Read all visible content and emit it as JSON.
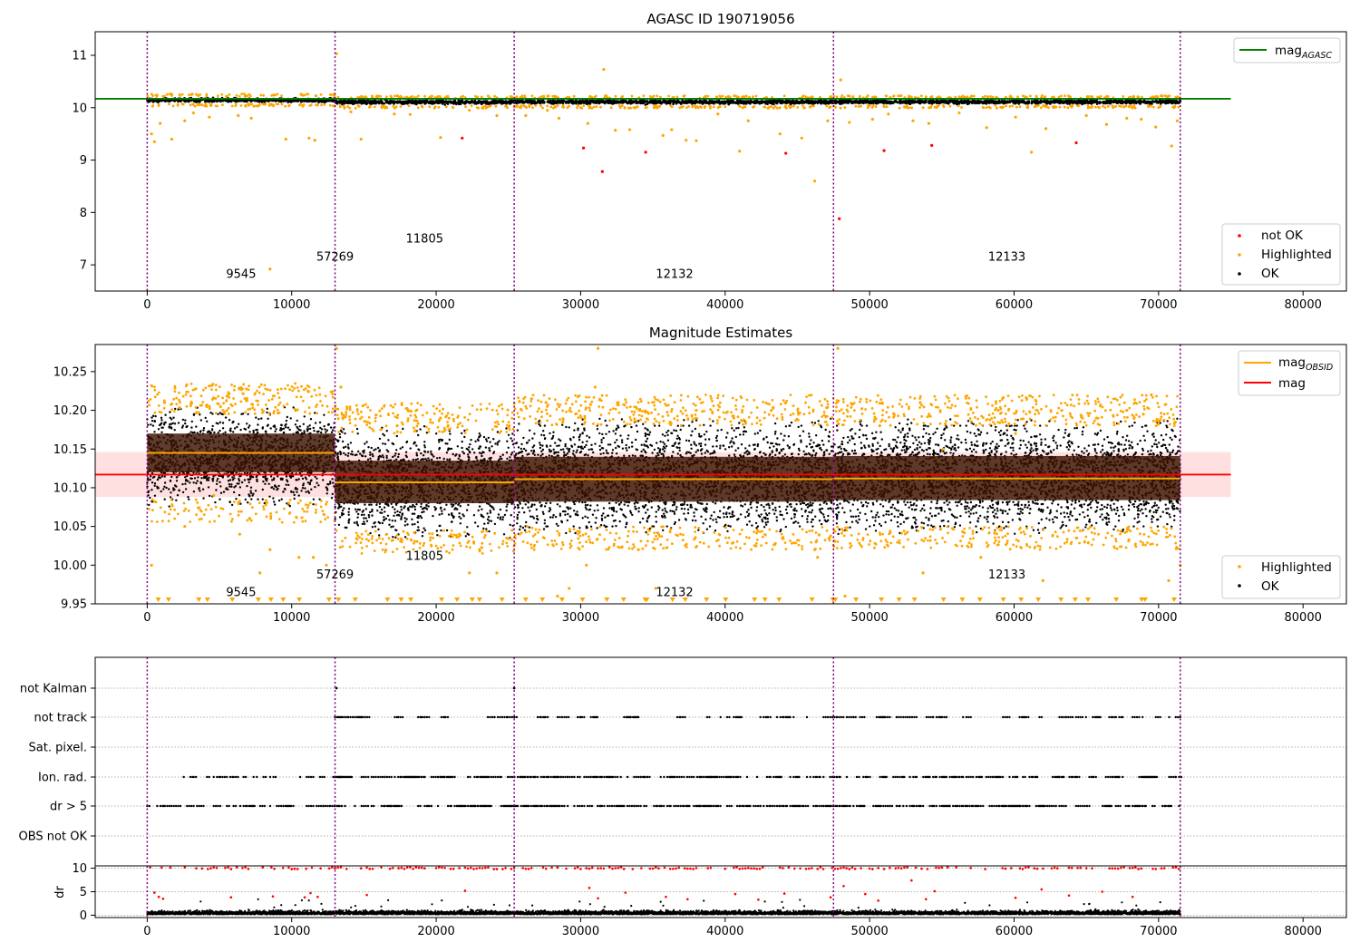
{
  "chart_data": [
    {
      "type": "scatter",
      "panel": "top",
      "title": "AGASC ID 190719056",
      "xlim": [
        -3600,
        83000
      ],
      "ylim": [
        6.5,
        11.45
      ],
      "xticks": [
        0,
        10000,
        20000,
        30000,
        40000,
        50000,
        60000,
        70000,
        80000
      ],
      "yticks": [
        7,
        8,
        9,
        10,
        11
      ],
      "vlines": [
        0,
        13000,
        25400,
        47500,
        71500
      ],
      "hline": {
        "name": "mag",
        "sub": "AGASC",
        "y": 10.17,
        "x": [
          -3600,
          75000
        ],
        "color": "#008000"
      },
      "obsid_labels": [
        {
          "text": "9545",
          "x": 6500,
          "y": 6.75
        },
        {
          "text": "57269",
          "x": 13000,
          "y": 7.08
        },
        {
          "text": "11805",
          "x": 19200,
          "y": 7.43
        },
        {
          "text": "12132",
          "x": 36500,
          "y": 6.75
        },
        {
          "text": "12133",
          "x": 59500,
          "y": 7.08
        }
      ],
      "segments": [
        {
          "x0": 0,
          "x1": 13000,
          "y": 10.145,
          "spread": 0.028
        },
        {
          "x0": 13000,
          "x1": 25400,
          "y": 10.108,
          "spread": 0.028
        },
        {
          "x0": 25400,
          "x1": 47500,
          "y": 10.11,
          "spread": 0.028
        },
        {
          "x0": 47500,
          "x1": 71500,
          "y": 10.112,
          "spread": 0.028
        }
      ],
      "series": [
        {
          "name": "not OK",
          "color": "#ff0000",
          "points": [
            [
              21800,
              9.42
            ],
            [
              30200,
              9.23
            ],
            [
              31500,
              8.78
            ],
            [
              34500,
              9.15
            ],
            [
              44200,
              9.13
            ],
            [
              47900,
              7.88
            ],
            [
              51000,
              9.18
            ],
            [
              54300,
              9.28
            ],
            [
              64300,
              9.33
            ]
          ]
        },
        {
          "name": "Highlighted",
          "color": "#ffa500",
          "points": [
            [
              300,
              9.5
            ],
            [
              500,
              9.35
            ],
            [
              900,
              9.7
            ],
            [
              1700,
              9.4
            ],
            [
              2600,
              9.75
            ],
            [
              3200,
              9.9
            ],
            [
              4300,
              9.82
            ],
            [
              6300,
              9.85
            ],
            [
              7200,
              9.8
            ],
            [
              8500,
              6.92
            ],
            [
              9600,
              9.4
            ],
            [
              11200,
              9.42
            ],
            [
              11600,
              9.38
            ],
            [
              13100,
              11.03
            ],
            [
              14100,
              9.92
            ],
            [
              14800,
              9.4
            ],
            [
              17100,
              9.88
            ],
            [
              18200,
              9.87
            ],
            [
              20300,
              9.43
            ],
            [
              22300,
              9.95
            ],
            [
              24200,
              9.85
            ],
            [
              26200,
              9.85
            ],
            [
              27700,
              9.95
            ],
            [
              28500,
              9.8
            ],
            [
              30500,
              9.7
            ],
            [
              31600,
              10.73
            ],
            [
              32400,
              9.57
            ],
            [
              33400,
              9.58
            ],
            [
              35700,
              9.47
            ],
            [
              36300,
              9.58
            ],
            [
              37300,
              9.38
            ],
            [
              38000,
              9.37
            ],
            [
              39500,
              9.88
            ],
            [
              41000,
              9.17
            ],
            [
              41600,
              9.75
            ],
            [
              43800,
              9.5
            ],
            [
              45300,
              9.42
            ],
            [
              46200,
              8.6
            ],
            [
              47100,
              9.75
            ],
            [
              48000,
              10.53
            ],
            [
              48600,
              9.72
            ],
            [
              50200,
              9.78
            ],
            [
              51300,
              9.88
            ],
            [
              53000,
              9.75
            ],
            [
              54100,
              9.7
            ],
            [
              56200,
              9.9
            ],
            [
              58100,
              9.62
            ],
            [
              60100,
              9.82
            ],
            [
              61200,
              9.15
            ],
            [
              62200,
              9.6
            ],
            [
              65000,
              9.85
            ],
            [
              66400,
              9.68
            ],
            [
              67800,
              9.8
            ],
            [
              68800,
              9.78
            ],
            [
              69800,
              9.63
            ],
            [
              70900,
              9.27
            ],
            [
              71300,
              9.75
            ]
          ]
        }
      ],
      "ok_band": {
        "name": "OK",
        "color": "#000000"
      },
      "legend_lines": [
        {
          "name": "mag",
          "sub": "AGASC",
          "color": "#008000"
        }
      ],
      "legend_points": [
        "not OK",
        "Highlighted",
        "OK"
      ]
    },
    {
      "type": "scatter",
      "panel": "middle",
      "title": "Magnitude Estimates",
      "xlim": [
        -3600,
        83000
      ],
      "ylim": [
        9.95,
        10.285
      ],
      "xticks": [
        0,
        10000,
        20000,
        30000,
        40000,
        50000,
        60000,
        70000,
        80000
      ],
      "yticks": [
        9.95,
        10.0,
        10.05,
        10.1,
        10.15,
        10.2,
        10.25
      ],
      "vlines": [
        0,
        13000,
        25400,
        47500,
        71500
      ],
      "mag_line": {
        "name": "mag",
        "y": 10.117,
        "band": [
          10.088,
          10.146
        ],
        "x": [
          -3600,
          75000
        ],
        "color": "#ff0000"
      },
      "obsid_labels": [
        {
          "text": "9545",
          "x": 6500,
          "y": 9.96
        },
        {
          "text": "57269",
          "x": 13000,
          "y": 9.983
        },
        {
          "text": "11805",
          "x": 19200,
          "y": 10.007
        },
        {
          "text": "12132",
          "x": 36500,
          "y": 9.96
        },
        {
          "text": "12133",
          "x": 59500,
          "y": 9.983
        }
      ],
      "segments": [
        {
          "name": "mag",
          "sub": "OBSID",
          "x0": 0,
          "x1": 13000,
          "y": 10.145,
          "band": [
            10.12,
            10.17
          ],
          "ok_range": [
            10.085,
            10.195
          ]
        },
        {
          "name": "mag",
          "sub": "OBSID",
          "x0": 13000,
          "x1": 25400,
          "y": 10.107,
          "band": [
            10.08,
            10.135
          ],
          "ok_range": [
            10.045,
            10.17
          ]
        },
        {
          "name": "mag",
          "sub": "OBSID",
          "x0": 25400,
          "x1": 47500,
          "y": 10.111,
          "band": [
            10.082,
            10.14
          ],
          "ok_range": [
            10.05,
            10.18
          ]
        },
        {
          "name": "mag",
          "sub": "OBSID",
          "x0": 47500,
          "x1": 71500,
          "y": 10.112,
          "band": [
            10.084,
            10.141
          ],
          "ok_range": [
            10.05,
            10.18
          ]
        }
      ],
      "series": [
        {
          "name": "Highlighted",
          "color": "#ffa500",
          "points": [
            [
              300,
              10.0
            ],
            [
              1200,
              10.21
            ],
            [
              2600,
              10.05
            ],
            [
              4600,
              10.09
            ],
            [
              6400,
              10.04
            ],
            [
              7100,
              10.06
            ],
            [
              7800,
              9.99
            ],
            [
              8500,
              10.02
            ],
            [
              9800,
              10.08
            ],
            [
              10500,
              10.01
            ],
            [
              11500,
              10.01
            ],
            [
              12400,
              10.0
            ],
            [
              13100,
              10.28
            ],
            [
              13400,
              10.23
            ],
            [
              17300,
              10.18
            ],
            [
              20300,
              10.19
            ],
            [
              21600,
              10.04
            ],
            [
              22300,
              9.99
            ],
            [
              22600,
              10.03
            ],
            [
              23000,
              10.02
            ],
            [
              24200,
              9.99
            ],
            [
              27600,
              10.21
            ],
            [
              28400,
              9.96
            ],
            [
              29200,
              9.97
            ],
            [
              30400,
              10.0
            ],
            [
              31200,
              10.28
            ],
            [
              31000,
              10.23
            ],
            [
              32600,
              10.21
            ],
            [
              34000,
              10.02
            ],
            [
              35200,
              9.97
            ],
            [
              38000,
              10.2
            ],
            [
              40600,
              10.19
            ],
            [
              43200,
              10.2
            ],
            [
              46300,
              10.03
            ],
            [
              46400,
              10.01
            ],
            [
              46200,
              10.02
            ],
            [
              47800,
              10.28
            ],
            [
              48300,
              9.96
            ],
            [
              50700,
              10.18
            ],
            [
              53500,
              10.21
            ],
            [
              53700,
              9.99
            ],
            [
              55100,
              10.15
            ],
            [
              57700,
              10.01
            ],
            [
              58900,
              10.2
            ],
            [
              60100,
              10.17
            ],
            [
              62000,
              9.98
            ],
            [
              63300,
              10.2
            ],
            [
              65700,
              10.19
            ],
            [
              67800,
              10.2
            ],
            [
              69500,
              10.22
            ],
            [
              70700,
              9.98
            ],
            [
              71500,
              10.0
            ]
          ]
        }
      ],
      "ok_band": {
        "name": "OK",
        "color": "#000000"
      },
      "legend_lines": [
        {
          "name": "mag",
          "sub": "OBSID",
          "color": "#ffa500"
        },
        {
          "name": "mag",
          "sub": "",
          "color": "#ff0000"
        }
      ],
      "legend_points": [
        "Highlighted",
        "OK"
      ]
    },
    {
      "type": "scatter",
      "panel": "flags",
      "xlim": [
        -3600,
        83000
      ],
      "categories": [
        "not Kalman",
        "not track",
        "Sat. pixel.",
        "Ion. rad.",
        "dr > 5",
        "OBS not OK"
      ],
      "vlines": [
        0,
        13000,
        25400,
        47500,
        71500
      ],
      "flag_density": {
        "not Kalman": [
          [
            13100,
            1
          ],
          [
            25400,
            1
          ]
        ],
        "not track": [
          [
            13000,
            71500,
            0.35
          ]
        ],
        "Sat. pixel.": [],
        "Ion. rad.": [
          [
            0,
            13000,
            0.45
          ],
          [
            13000,
            71500,
            0.65
          ]
        ],
        "dr > 5": [
          [
            0,
            13000,
            0.45
          ],
          [
            13000,
            71500,
            0.65
          ]
        ],
        "OBS not OK": []
      }
    },
    {
      "type": "scatter",
      "panel": "dr",
      "ylabel": "dr",
      "xlim": [
        -3600,
        83000
      ],
      "ylim": [
        -0.5,
        10.5
      ],
      "xticks": [
        0,
        10000,
        20000,
        30000,
        40000,
        50000,
        60000,
        70000,
        80000
      ],
      "yticks": [
        0,
        5,
        10
      ],
      "vlines": [
        0,
        13000,
        25400,
        47500,
        71500
      ],
      "series": [
        {
          "name": "not OK",
          "color": "#ff0000",
          "points": [
            [
              500,
              4.8
            ],
            [
              800,
              3.9
            ],
            [
              1100,
              3.5
            ],
            [
              5800,
              3.8
            ],
            [
              8700,
              4.0
            ],
            [
              10900,
              3.8
            ],
            [
              11300,
              4.7
            ],
            [
              11800,
              3.9
            ],
            [
              15200,
              4.3
            ],
            [
              22000,
              5.2
            ],
            [
              30600,
              5.8
            ],
            [
              31200,
              3.6
            ],
            [
              33100,
              4.8
            ],
            [
              35900,
              3.9
            ],
            [
              37400,
              3.4
            ],
            [
              40700,
              4.5
            ],
            [
              42300,
              3.3
            ],
            [
              44100,
              4.6
            ],
            [
              47300,
              3.8
            ],
            [
              48200,
              6.2
            ],
            [
              49700,
              4.5
            ],
            [
              50600,
              3.1
            ],
            [
              52900,
              7.4
            ],
            [
              53900,
              3.4
            ],
            [
              54500,
              5.1
            ],
            [
              60100,
              3.7
            ],
            [
              61900,
              5.5
            ],
            [
              63800,
              4.2
            ],
            [
              66100,
              5.0
            ],
            [
              68200,
              3.9
            ]
          ]
        }
      ]
    }
  ]
}
